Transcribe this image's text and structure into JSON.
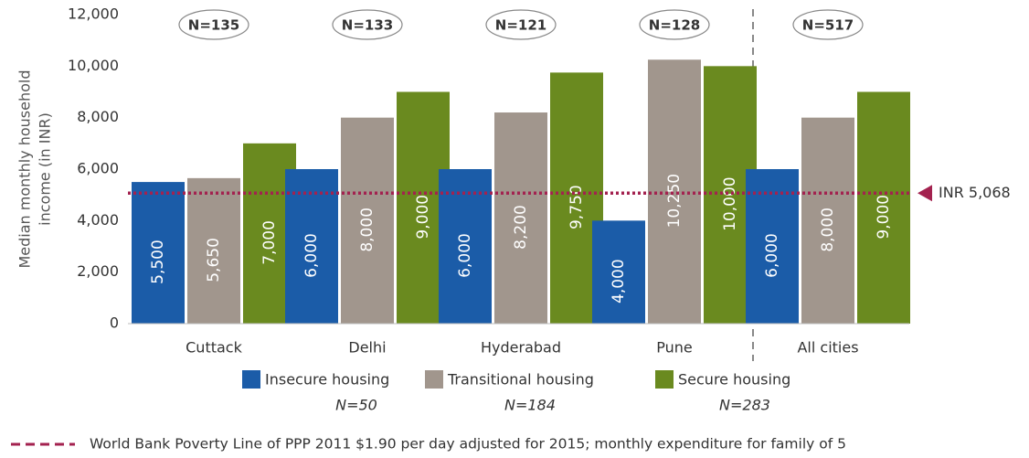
{
  "chart_data": {
    "type": "bar",
    "ylabel": [
      "Median monthly household",
      "income (in INR)"
    ],
    "categories": [
      "Cuttack",
      "Delhi",
      "Hyderabad",
      "Pune",
      "All cities"
    ],
    "category_notes": [
      "N=135",
      "N=133",
      "N=121",
      "N=128",
      "N=517"
    ],
    "series": [
      {
        "name": "Insecure housing",
        "note": "N=50",
        "color": "#1b5ca8",
        "values": [
          5500,
          6000,
          6000,
          4000,
          6000
        ],
        "value_labels": [
          "5,500",
          "6,000",
          "6,000",
          "4,000",
          "6,000"
        ]
      },
      {
        "name": "Transitional housing",
        "note": "N=184",
        "color": "#a1968d",
        "values": [
          5650,
          8000,
          8200,
          10250,
          8000
        ],
        "value_labels": [
          "5,650",
          "8,000",
          "8,200",
          "10,250",
          "8,000"
        ]
      },
      {
        "name": "Secure housing",
        "note": "N=283",
        "color": "#6a8a1f",
        "values": [
          7000,
          9000,
          9750,
          10000,
          9000
        ],
        "value_labels": [
          "7,000",
          "9,000",
          "9,750",
          "10,000",
          "9,000"
        ]
      }
    ],
    "ylim": [
      0,
      12000
    ],
    "yticks": [
      0,
      {
        "value": 2000,
        "label": "2,000"
      },
      {
        "value": 4000,
        "label": "4,000"
      },
      {
        "value": 6000,
        "label": "6,000"
      },
      {
        "value": 8000,
        "label": "8,000"
      },
      {
        "value": 10000,
        "label": "10,000"
      },
      {
        "value": 12000,
        "label": "12,000"
      }
    ],
    "reference": {
      "value": 5068,
      "label": "INR 5,068",
      "color": "#a3224f",
      "description": "World Bank Poverty Line of PPP 2011 $1.90 per day adjusted for 2015; monthly expenditure for family of 5"
    }
  }
}
